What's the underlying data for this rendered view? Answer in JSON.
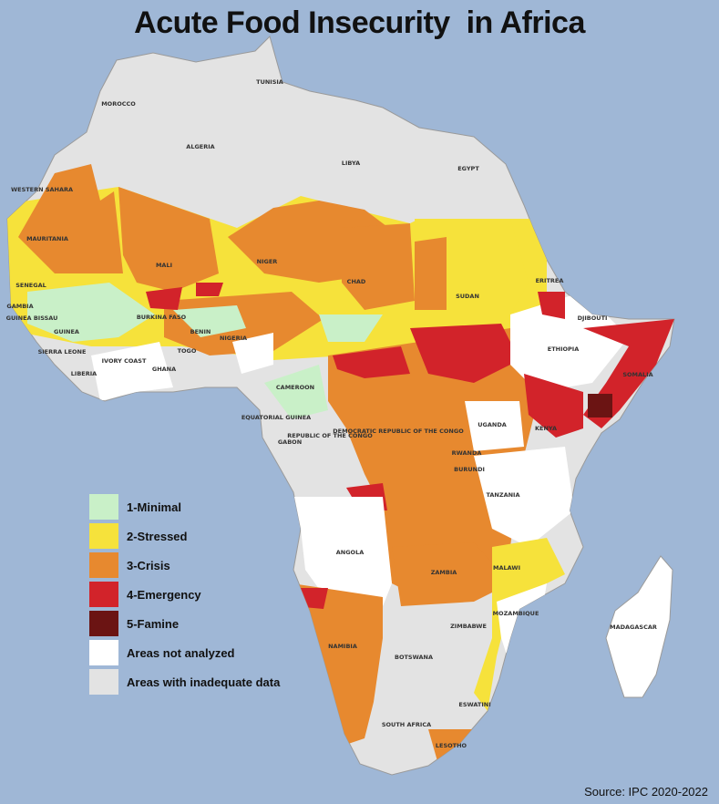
{
  "title": "Acute Food Insecurity  in Africa",
  "source": "Source: IPC 2020-2022",
  "colors": {
    "ocean": "#9fb7d6",
    "minimal": "#c9f0c8",
    "stressed": "#f6e23b",
    "crisis": "#e7892f",
    "emergency": "#d2232a",
    "famine": "#6b1413",
    "not_analyzed": "#ffffff",
    "inadequate_data": "#e3e3e3"
  },
  "legend": [
    {
      "label": "1-Minimal",
      "color": "#c9f0c8"
    },
    {
      "label": "2-Stressed",
      "color": "#f6e23b"
    },
    {
      "label": "3-Crisis",
      "color": "#e7892f"
    },
    {
      "label": "4-Emergency",
      "color": "#d2232a"
    },
    {
      "label": "5-Famine",
      "color": "#6b1413"
    },
    {
      "label": "Areas not analyzed",
      "color": "#ffffff"
    },
    {
      "label": "Areas with inadequate data",
      "color": "#e3e3e3"
    }
  ],
  "countries": {
    "morocco": "MOROCCO",
    "tunisia": "TUNISIA",
    "algeria": "ALGERIA",
    "libya": "LIBYA",
    "egypt": "EGYPT",
    "western_sahara": "WESTERN SAHARA",
    "mauritania": "MAURITANIA",
    "mali": "MALI",
    "niger": "NIGER",
    "chad": "CHAD",
    "sudan": "SUDAN",
    "eritrea": "ERITREA",
    "djibouti": "DJIBOUTI",
    "ethiopia": "ETHIOPIA",
    "somalia": "SOMALIA",
    "senegal": "SENEGAL",
    "gambia": "GAMBIA",
    "guinea_bissau": "GUINEA BISSAU",
    "guinea": "GUINEA",
    "sierra_leone": "SIERRA LEONE",
    "liberia": "LIBERIA",
    "ivory_coast": "IVORY COAST",
    "burkina_faso": "BURKINA FASO",
    "ghana": "GHANA",
    "togo": "TOGO",
    "benin": "BENIN",
    "nigeria": "NIGERIA",
    "cameroon": "CAMEROON",
    "equatorial_guinea": "EQUATORIAL GUINEA",
    "gabon": "GABON",
    "republic_congo": "REPUBLIC OF THE CONGO",
    "drc": "DEMOCRATIC REPUBLIC OF THE CONGO",
    "uganda": "UGANDA",
    "kenya": "KENYA",
    "rwanda": "RWANDA",
    "burundi": "BURUNDI",
    "tanzania": "TANZANIA",
    "angola": "ANGOLA",
    "zambia": "ZAMBIA",
    "malawi": "MALAWI",
    "mozambique": "MOZAMBIQUE",
    "zimbabwe": "ZIMBABWE",
    "namibia": "NAMIBIA",
    "botswana": "BOTSWANA",
    "madagascar": "MADAGASCAR",
    "south_africa": "SOUTH AFRICA",
    "eswatini": "ESWATINI",
    "lesotho": "LESOTHO"
  }
}
